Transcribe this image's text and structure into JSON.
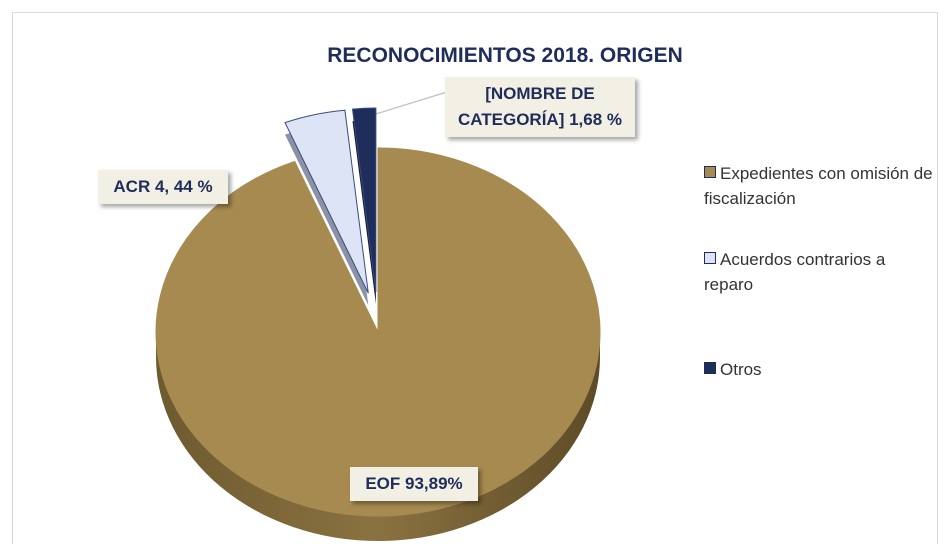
{
  "chart_data": {
    "type": "pie",
    "title": "RECONOCIMIENTOS 2018. ORIGEN",
    "categories": [
      "Expedientes con omisión de fiscalización",
      "Acuerdos contrarios a reparo",
      "Otros"
    ],
    "values": [
      93.89,
      4.44,
      1.68
    ],
    "value_labels": [
      "EOF 93,89%",
      "ACR 4, 44 %",
      "[NOMBRE DE CATEGORÍA] 1,68 %"
    ],
    "colors": [
      "#a68a4f",
      "#dde4f6",
      "#1f2d5a"
    ],
    "legend": "right"
  }
}
